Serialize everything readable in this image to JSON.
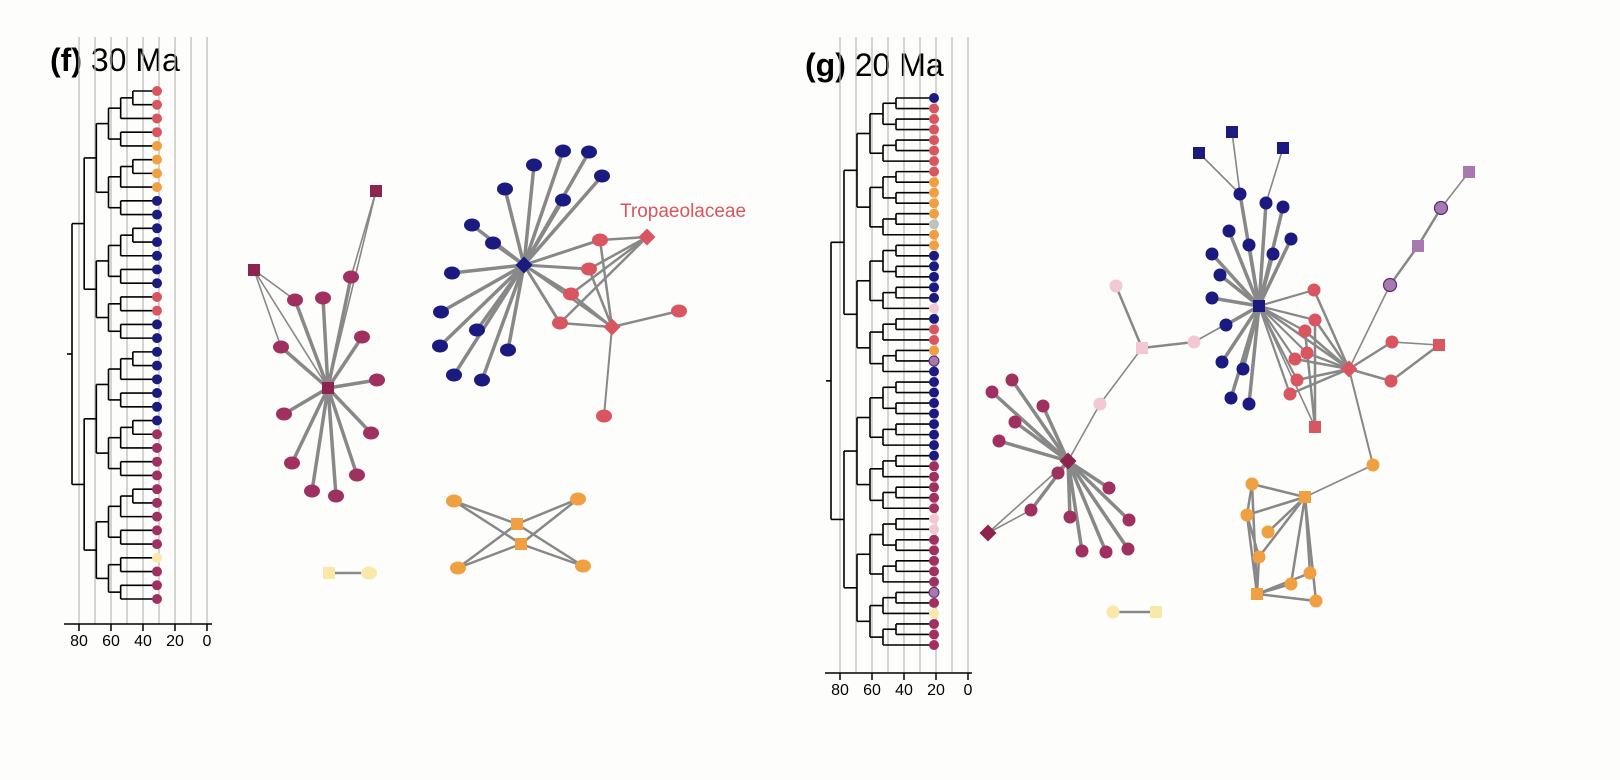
{
  "panels": [
    {
      "letter": "(f)",
      "age": "30 Ma"
    },
    {
      "letter": "(g)",
      "age": "20 Ma"
    }
  ],
  "axis_ticks": [
    "80",
    "60",
    "40",
    "20",
    "0"
  ],
  "annotation": "Tropaeolaceae",
  "colors": {
    "crimson": "#a03060",
    "navy": "#1a1a80",
    "coral": "#d95560",
    "orange": "#f0a040",
    "pale_yellow": "#fbe7a8",
    "pale_pink": "#f2c8d2",
    "lavender": "#a878b0",
    "grey": "#c0c0c0",
    "edge": "#888888",
    "dark_crimson": "#8b2550"
  },
  "tree_f_tips": [
    "coral",
    "coral",
    "coral",
    "coral",
    "orange",
    "orange",
    "orange",
    "orange",
    "navy",
    "navy",
    "navy",
    "navy",
    "navy",
    "navy",
    "navy",
    "coral",
    "coral",
    "navy",
    "navy",
    "navy",
    "navy",
    "navy",
    "navy",
    "navy",
    "navy",
    "crimson",
    "crimson",
    "crimson",
    "crimson",
    "crimson",
    "crimson",
    "crimson",
    "crimson",
    "crimson",
    "pale_yellow",
    "crimson",
    "crimson",
    "crimson"
  ],
  "tree_g_tips": [
    "navy",
    "coral",
    "coral",
    "coral",
    "coral",
    "coral",
    "coral",
    "coral",
    "orange",
    "orange",
    "orange",
    "orange",
    "grey",
    "orange",
    "orange",
    "navy",
    "navy",
    "navy",
    "navy",
    "navy",
    "pale_pink",
    "navy",
    "coral",
    "coral",
    "orange",
    "lavender",
    "navy",
    "navy",
    "navy",
    "navy",
    "navy",
    "navy",
    "navy",
    "navy",
    "navy",
    "crimson",
    "crimson",
    "crimson",
    "crimson",
    "crimson",
    "pale_pink",
    "pale_pink",
    "crimson",
    "crimson",
    "crimson",
    "crimson",
    "crimson",
    "lavender",
    "crimson",
    "pale_yellow",
    "crimson",
    "crimson",
    "crimson"
  ]
}
